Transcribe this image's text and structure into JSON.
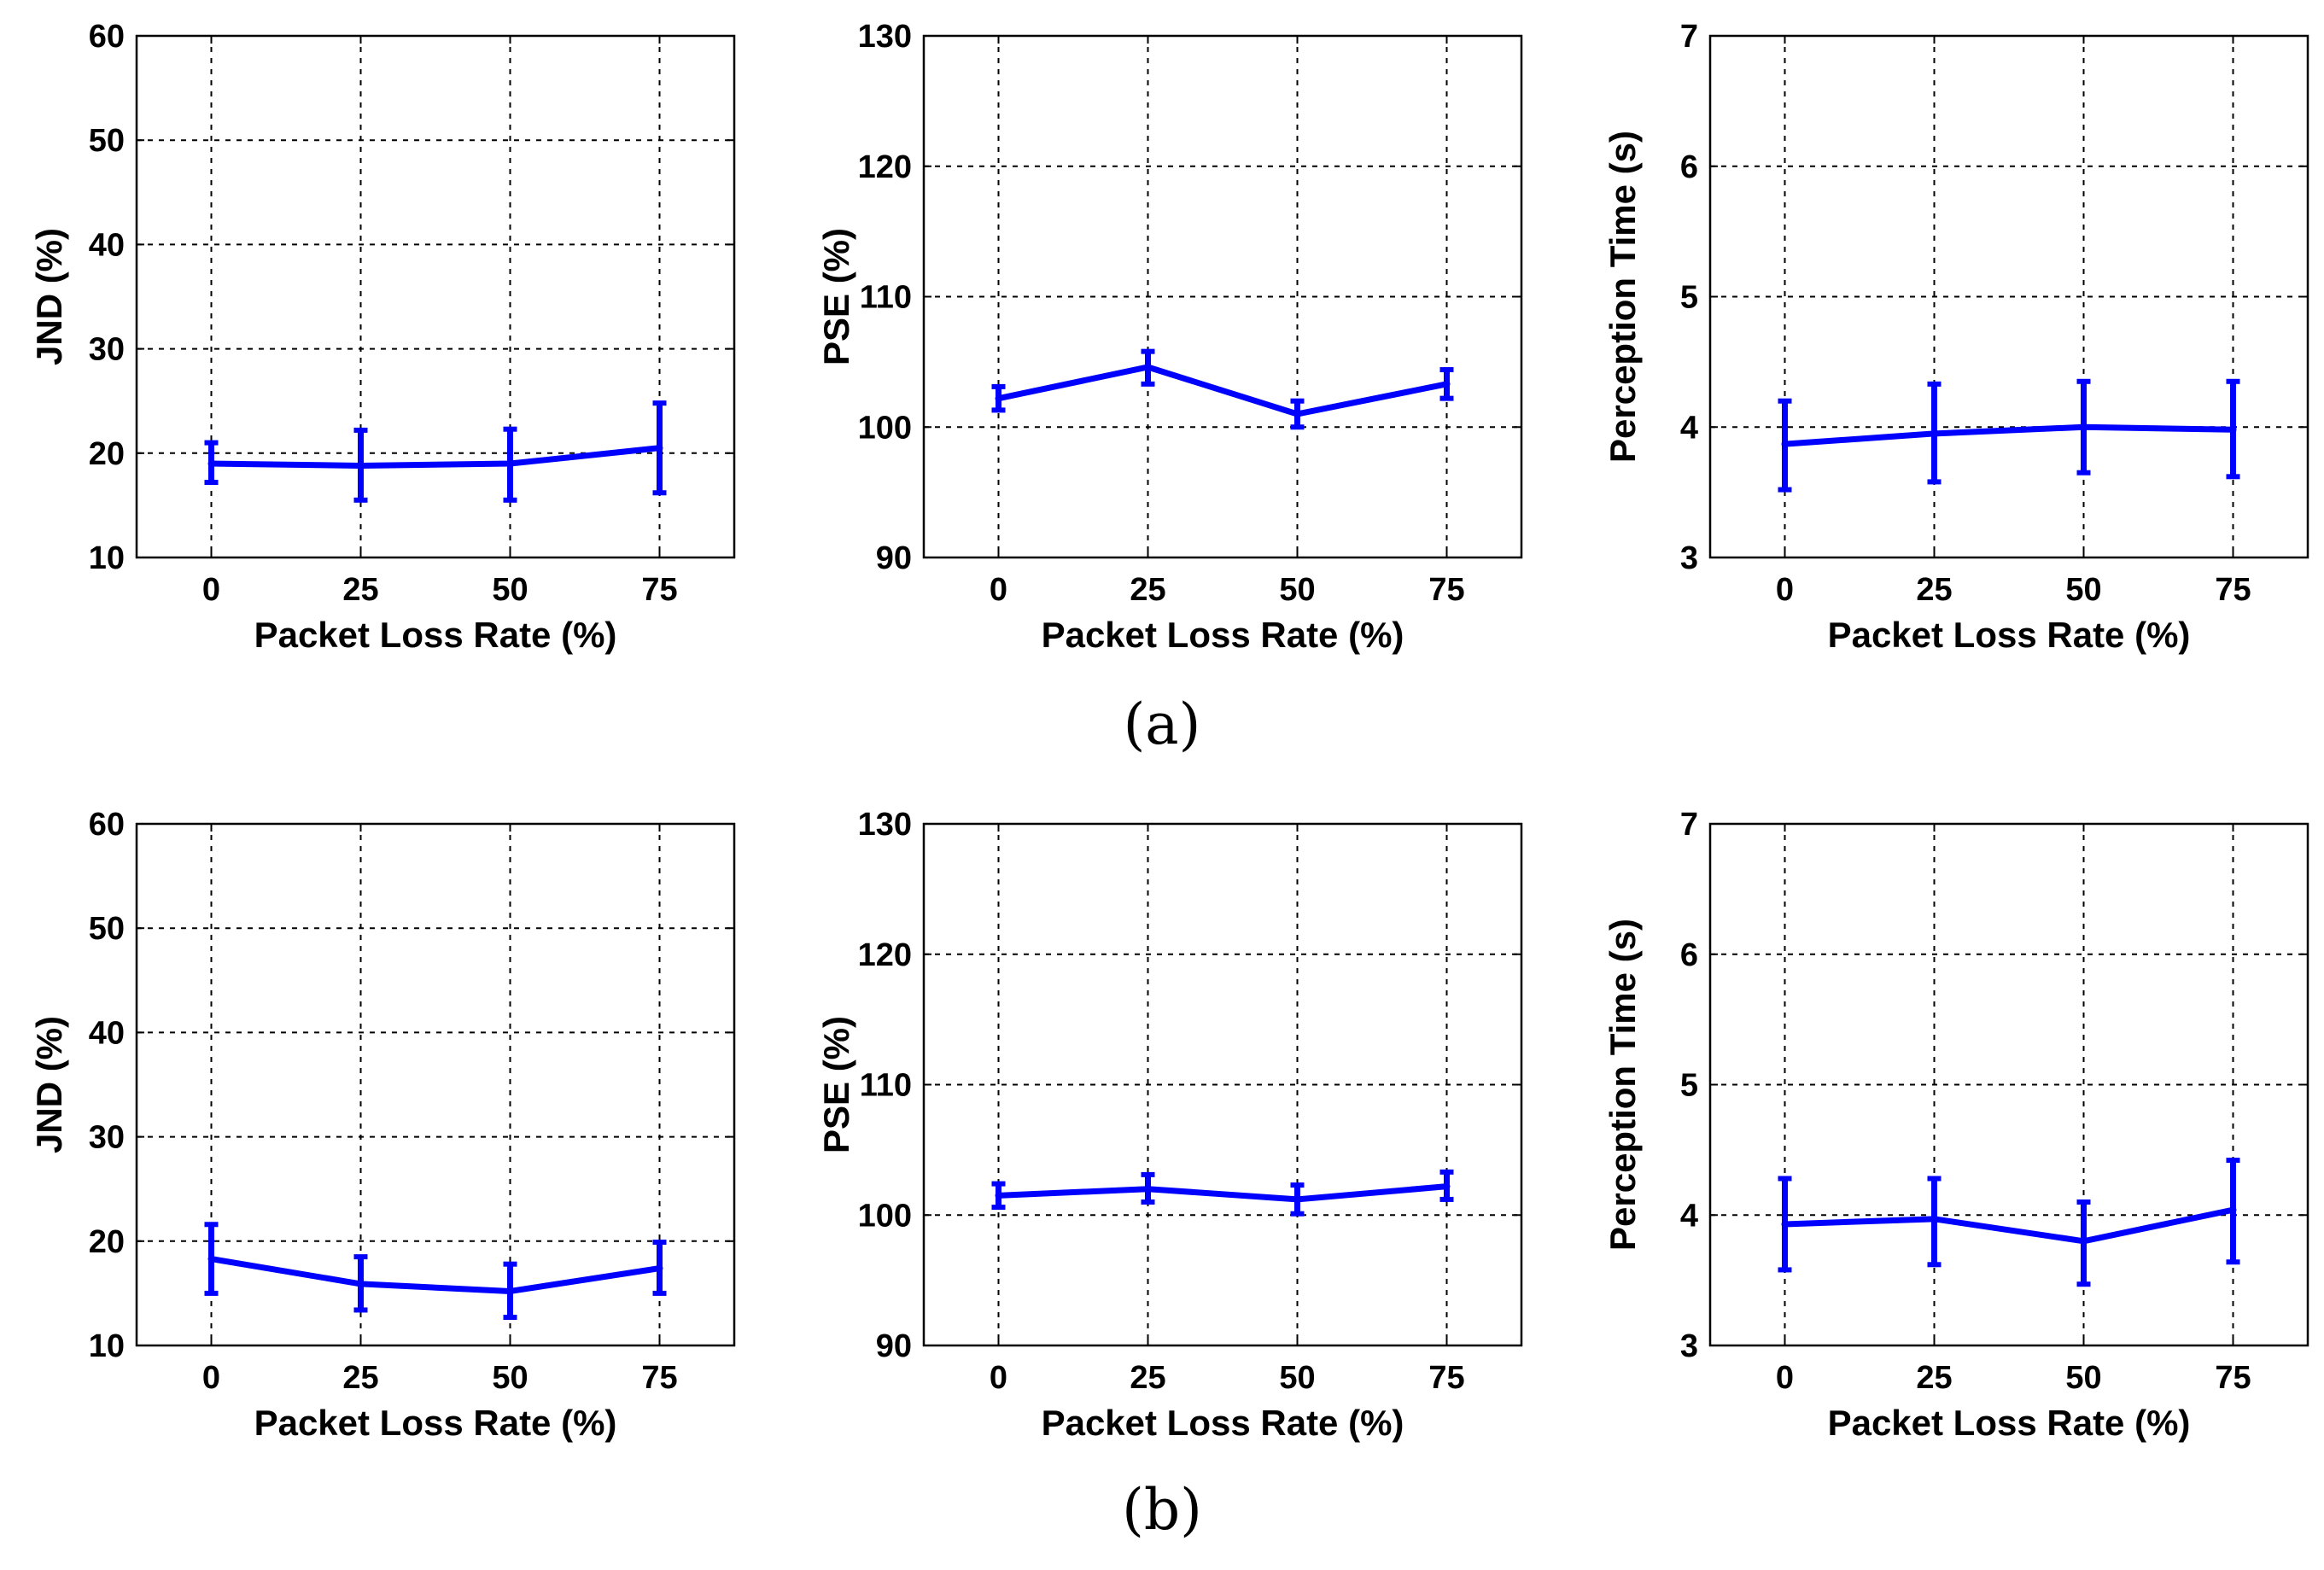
{
  "captions": [
    "(a)",
    "(b)"
  ],
  "style": {
    "line_color": "#0000ff",
    "axis_color": "#000000",
    "grid_color": "#000000",
    "background": "#ffffff"
  },
  "chart_data": [
    {
      "id": "a-jnd",
      "type": "line",
      "row": "a",
      "column": 0,
      "xlabel": "Packet Loss Rate (%)",
      "ylabel": "JND (%)",
      "categories": [
        "0",
        "25",
        "50",
        "75"
      ],
      "x": [
        0,
        25,
        50,
        75
      ],
      "xlim": [
        -12.5,
        87.5
      ],
      "ylim": [
        10,
        60
      ],
      "yticks": [
        "10",
        "20",
        "30",
        "40",
        "50",
        "60"
      ],
      "grid": true,
      "series": [
        {
          "name": "JND",
          "values": [
            19.0,
            18.8,
            19.0,
            20.5
          ],
          "err_low": [
            17.2,
            15.5,
            15.5,
            16.2
          ],
          "err_high": [
            21.0,
            22.2,
            22.3,
            24.8
          ]
        }
      ]
    },
    {
      "id": "a-pse",
      "type": "line",
      "row": "a",
      "column": 1,
      "xlabel": "Packet Loss Rate (%)",
      "ylabel": "PSE (%)",
      "categories": [
        "0",
        "25",
        "50",
        "75"
      ],
      "x": [
        0,
        25,
        50,
        75
      ],
      "xlim": [
        -12.5,
        87.5
      ],
      "ylim": [
        90,
        130
      ],
      "yticks": [
        "90",
        "100",
        "110",
        "120",
        "130"
      ],
      "grid": true,
      "series": [
        {
          "name": "PSE",
          "values": [
            102.2,
            104.6,
            101.0,
            103.3
          ],
          "err_low": [
            101.3,
            103.3,
            100.0,
            102.2
          ],
          "err_high": [
            103.1,
            105.8,
            102.0,
            104.4
          ]
        }
      ]
    },
    {
      "id": "a-time",
      "type": "line",
      "row": "a",
      "column": 2,
      "xlabel": "Packet Loss Rate (%)",
      "ylabel": "Perception Time (s)",
      "categories": [
        "0",
        "25",
        "50",
        "75"
      ],
      "x": [
        0,
        25,
        50,
        75
      ],
      "xlim": [
        -12.5,
        87.5
      ],
      "ylim": [
        3,
        7
      ],
      "yticks": [
        "3",
        "4",
        "5",
        "6",
        "7"
      ],
      "grid": true,
      "series": [
        {
          "name": "Perception Time",
          "values": [
            3.87,
            3.95,
            4.0,
            3.98
          ],
          "err_low": [
            3.52,
            3.58,
            3.65,
            3.62
          ],
          "err_high": [
            4.2,
            4.33,
            4.35,
            4.35
          ]
        }
      ]
    },
    {
      "id": "b-jnd",
      "type": "line",
      "row": "b",
      "column": 0,
      "xlabel": "Packet Loss Rate (%)",
      "ylabel": "JND (%)",
      "categories": [
        "0",
        "25",
        "50",
        "75"
      ],
      "x": [
        0,
        25,
        50,
        75
      ],
      "xlim": [
        -12.5,
        87.5
      ],
      "ylim": [
        10,
        60
      ],
      "yticks": [
        "10",
        "20",
        "30",
        "40",
        "50",
        "60"
      ],
      "grid": true,
      "series": [
        {
          "name": "JND",
          "values": [
            18.3,
            15.9,
            15.2,
            17.4
          ],
          "err_low": [
            15.0,
            13.4,
            12.7,
            15.0
          ],
          "err_high": [
            21.6,
            18.5,
            17.8,
            19.9
          ]
        }
      ]
    },
    {
      "id": "b-pse",
      "type": "line",
      "row": "b",
      "column": 1,
      "xlabel": "Packet Loss Rate (%)",
      "ylabel": "PSE (%)",
      "categories": [
        "0",
        "25",
        "50",
        "75"
      ],
      "x": [
        0,
        25,
        50,
        75
      ],
      "xlim": [
        -12.5,
        87.5
      ],
      "ylim": [
        90,
        130
      ],
      "yticks": [
        "90",
        "100",
        "110",
        "120",
        "130"
      ],
      "grid": true,
      "series": [
        {
          "name": "PSE",
          "values": [
            101.5,
            102.0,
            101.2,
            102.2
          ],
          "err_low": [
            100.6,
            101.0,
            100.1,
            101.2
          ],
          "err_high": [
            102.4,
            103.1,
            102.3,
            103.3
          ]
        }
      ]
    },
    {
      "id": "b-time",
      "type": "line",
      "row": "b",
      "column": 2,
      "xlabel": "Packet Loss Rate (%)",
      "ylabel": "Perception Time (s)",
      "categories": [
        "0",
        "25",
        "50",
        "75"
      ],
      "x": [
        0,
        25,
        50,
        75
      ],
      "xlim": [
        -12.5,
        87.5
      ],
      "ylim": [
        3,
        7
      ],
      "yticks": [
        "3",
        "4",
        "5",
        "6",
        "7"
      ],
      "grid": true,
      "series": [
        {
          "name": "Perception Time",
          "values": [
            3.93,
            3.97,
            3.8,
            4.04
          ],
          "err_low": [
            3.58,
            3.62,
            3.47,
            3.64
          ],
          "err_high": [
            4.28,
            4.28,
            4.1,
            4.42
          ]
        }
      ]
    }
  ]
}
